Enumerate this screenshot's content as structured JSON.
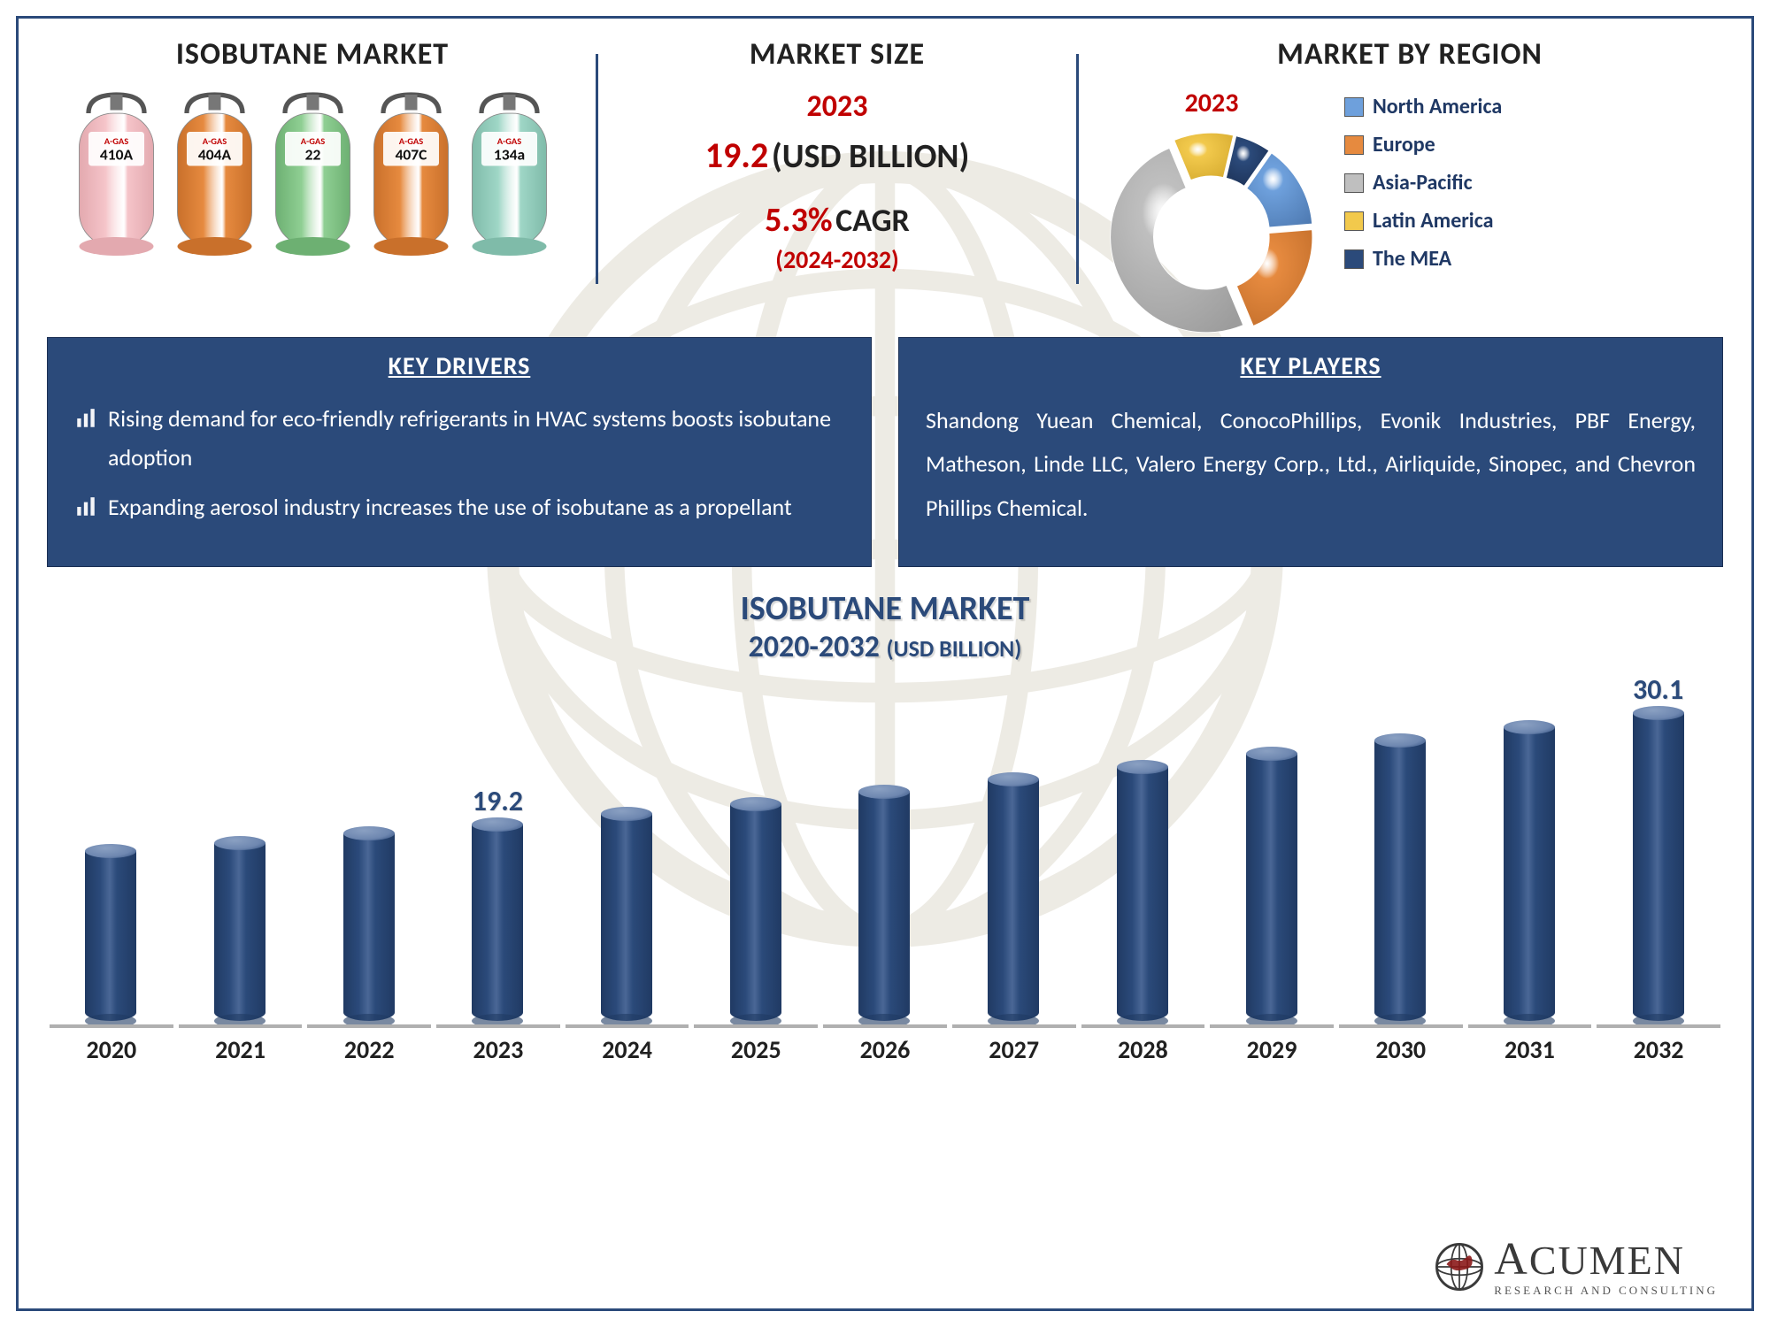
{
  "header": {
    "section1_title": "ISOBUTANE MARKET",
    "section2_title": "MARKET SIZE",
    "section3_title": "MARKET BY REGION"
  },
  "cylinders": [
    {
      "label": "410A",
      "fill": "#f5c4c9",
      "fill_dark": "#e3a9af"
    },
    {
      "label": "404A",
      "fill": "#e68a3f",
      "fill_dark": "#c9702b"
    },
    {
      "label": "22",
      "fill": "#8fcf93",
      "fill_dark": "#6db072"
    },
    {
      "label": "407C",
      "fill": "#e68a3f",
      "fill_dark": "#c9702b"
    },
    {
      "label": "134a",
      "fill": "#9fd6c6",
      "fill_dark": "#7fbba9"
    }
  ],
  "cylinder_brand": "A-GAS",
  "market_size": {
    "year": "2023",
    "value": "19.2",
    "unit": "(USD BILLION)",
    "cagr_value": "5.3%",
    "cagr_label": "CAGR",
    "range": "(2024-2032)"
  },
  "region": {
    "year": "2023",
    "donut": {
      "type": "pie",
      "inner_radius_ratio": 0.55,
      "slices": [
        {
          "name": "North America",
          "value": 14,
          "color": "#6ea0dc",
          "color_dark": "#4f7bb3"
        },
        {
          "name": "Europe",
          "value": 20,
          "color": "#e68a3f",
          "color_dark": "#c26e2b"
        },
        {
          "name": "Asia-Pacific",
          "value": 50,
          "color": "#bfbfbf",
          "color_dark": "#9c9c9c"
        },
        {
          "name": "Latin America",
          "value": 10,
          "color": "#f2c94c",
          "color_dark": "#d4a92e"
        },
        {
          "name": "The MEA",
          "value": 6,
          "color": "#2b4a7a",
          "color_dark": "#1b2f53"
        }
      ],
      "start_angle_deg": -55
    },
    "legend_colors": {
      "North America": "#6ea0dc",
      "Europe": "#e68a3f",
      "Asia-Pacific": "#bfbfbf",
      "Latin America": "#f2c94c",
      "The MEA": "#2b4a7a"
    },
    "legend_labels": [
      "North America",
      "Europe",
      "Asia-Pacific",
      "Latin America",
      "The MEA"
    ]
  },
  "key_drivers": {
    "title": "KEY DRIVERS",
    "items": [
      "Rising demand for eco-friendly refrigerants in HVAC systems boosts isobutane adoption",
      "Expanding aerosol industry increases the use of isobutane as a propellant"
    ],
    "panel_bg": "#2b4a7a",
    "text_color": "#ffffff"
  },
  "key_players": {
    "title": "KEY PLAYERS",
    "text": "Shandong Yuean Chemical, ConocoPhillips, Evonik Industries, PBF Energy, Matheson, Linde LLC, Valero Energy Corp., Ltd., Airliquide, Sinopec, and Chevron Phillips Chemical."
  },
  "bar_chart": {
    "type": "bar",
    "title_line1": "ISOBUTANE MARKET",
    "title_line2_range": "2020-2032",
    "title_line2_unit": "(USD BILLION)",
    "categories": [
      "2020",
      "2021",
      "2022",
      "2023",
      "2024",
      "2025",
      "2026",
      "2027",
      "2028",
      "2029",
      "2030",
      "2031",
      "2032"
    ],
    "values": [
      16.6,
      17.4,
      18.3,
      19.2,
      20.2,
      21.2,
      22.4,
      23.6,
      24.8,
      26.1,
      27.4,
      28.7,
      30.1
    ],
    "visible_labels": {
      "2023": "19.2",
      "2032": "30.1"
    },
    "ylim": [
      0,
      32
    ],
    "bar_fill_top": "#6e87b0",
    "bar_fill_body": "#2b4a7a",
    "bar_fill_body_dark": "#203a63",
    "axis_seg_color": "#b0b0b0",
    "label_color": "#2b4a7a",
    "cat_color": "#212121",
    "cat_fontsize": 28,
    "label_fontsize": 32,
    "title_fontsize": 38
  },
  "brand": {
    "name_html": "ACUMEN",
    "sub": "RESEARCH AND CONSULTING",
    "icon_color": "#8b1a1a"
  },
  "colors": {
    "frame": "#2b4a7a",
    "highlight": "#c00000"
  }
}
